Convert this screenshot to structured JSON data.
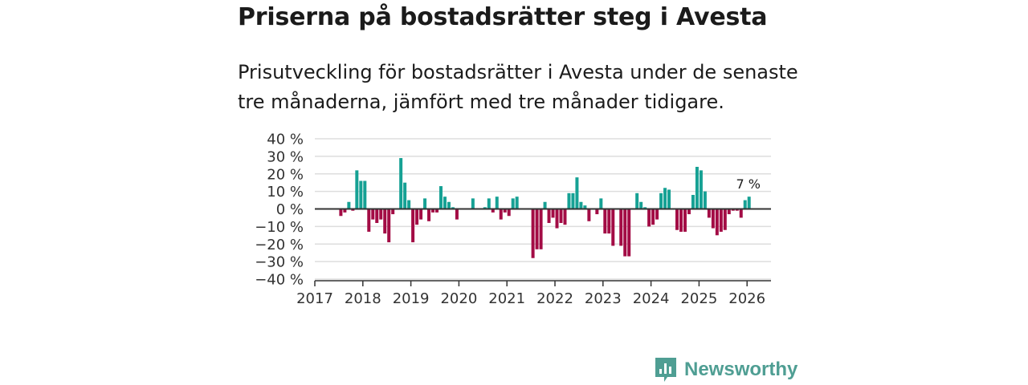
{
  "header": {
    "title": "Priserna på bostadsrätter steg i Avesta",
    "subtitle": "Prisutveckling för bostadsrätter i Avesta under de senaste tre månaderna, jämfört med tre månader tidigare."
  },
  "brand": {
    "name": "Newsworthy",
    "icon": "newsworthy-logo-icon",
    "color": "#4f9e93"
  },
  "colors": {
    "positive": "#16a194",
    "negative": "#a30c45",
    "gridline": "#dddddd",
    "zero_line": "#333333"
  },
  "chart_data": {
    "type": "bar",
    "title": "Priserna på bostadsrätter steg i Avesta",
    "xlabel": "",
    "ylabel": "",
    "ylim": [
      -40,
      40
    ],
    "yticks": [
      40,
      30,
      20,
      10,
      0,
      -10,
      -20,
      -30,
      -40
    ],
    "ytick_labels": [
      "40 %",
      "30 %",
      "20 %",
      "10 %",
      "0 %",
      "−10 %",
      "−20 %",
      "−30 %",
      "−40 %"
    ],
    "xticks": [
      "2017",
      "2018",
      "2019",
      "2020",
      "2021",
      "2022",
      "2023",
      "2024",
      "2025",
      "2026"
    ],
    "x_start": "2017-01",
    "last_value_label": "7 %",
    "grid": true,
    "legend": "none",
    "series": [
      {
        "name": "Prisutveckling",
        "unit": "%",
        "start_month": "2017-07",
        "values": [
          -4,
          -2,
          4,
          -1,
          22,
          16,
          16,
          -13,
          -6,
          -8,
          -6,
          -14,
          -19,
          -3,
          0,
          29,
          15,
          5,
          -19,
          -9,
          -6,
          6,
          -7,
          -2,
          -2,
          13,
          7,
          4,
          1,
          -6,
          0,
          0,
          0,
          6,
          0,
          0,
          1,
          6,
          -2,
          7,
          -6,
          -2,
          -4,
          6,
          7,
          0,
          0,
          0,
          -28,
          -23,
          -23,
          4,
          -8,
          -5,
          -11,
          -8,
          -9,
          9,
          9,
          18,
          4,
          2,
          -7,
          0,
          -3,
          6,
          -14,
          -14,
          -21,
          0,
          -21,
          -27,
          -27,
          0,
          9,
          4,
          1,
          -10,
          -9,
          -6,
          9,
          12,
          11,
          0,
          -12,
          -13,
          -13,
          -3,
          8,
          24,
          22,
          10,
          -5,
          -11,
          -15,
          -13,
          -12,
          -3,
          -1,
          -1,
          -5,
          5,
          7
        ]
      }
    ]
  }
}
